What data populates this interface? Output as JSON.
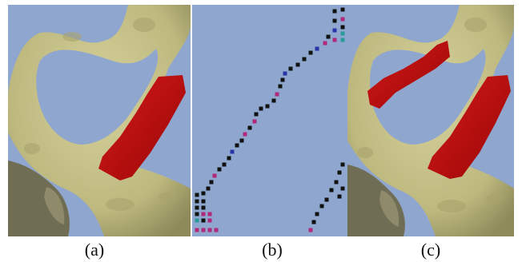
{
  "captions": {
    "a": "(a)",
    "b": "(b)",
    "c": "(c)"
  },
  "colors": {
    "background": "#8fa6cf",
    "bone": "#c9c48a",
    "bone_shadow": "#8e8a5a",
    "bone_dark": "#6f6e55",
    "highlight_red": "#c01010",
    "marker_black": "#111111",
    "marker_blue": "#2a34a8",
    "marker_magenta": "#b0287a",
    "marker_teal": "#2a9a9a"
  }
}
